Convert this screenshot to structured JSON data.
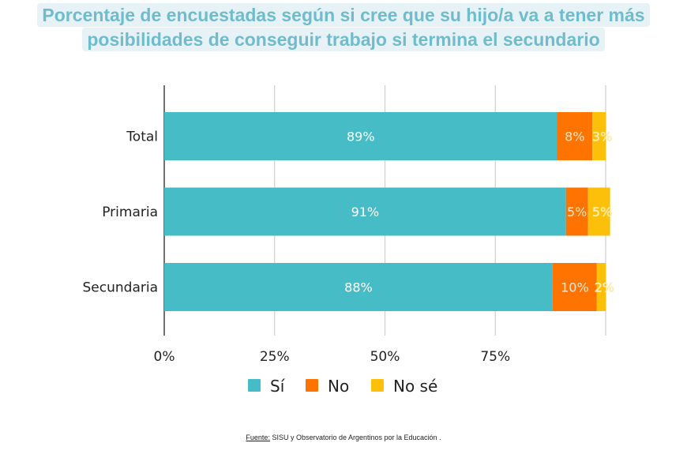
{
  "title": {
    "line1": "Porcentaje de encuestadas según si cree que su hijo/a va a tener más",
    "line2": "posibilidades de conseguir trabajo si termina el secundario"
  },
  "source": {
    "label": "Fuente:",
    "text": " SISU y Observatorio de Argentinos por la Educación ."
  },
  "chart_data": {
    "type": "bar",
    "orientation": "horizontal",
    "stacked": true,
    "title": "Porcentaje de encuestadas según si cree que su hijo/a va a tener más posibilidades de conseguir trabajo si termina el secundario",
    "xlabel": "",
    "ylabel": "",
    "xlim": [
      0,
      100
    ],
    "xticks": [
      0,
      25,
      50,
      75,
      100
    ],
    "xtick_labels": [
      "0%",
      "25%",
      "50%",
      "75%",
      ""
    ],
    "grid": true,
    "legend_position": "bottom",
    "categories": [
      "Total",
      "Primaria",
      "Secundaria"
    ],
    "series": [
      {
        "name": "Sí",
        "color": "#46bcc6",
        "values": [
          89,
          91,
          88
        ],
        "labels": [
          "89%",
          "91%",
          "88%"
        ]
      },
      {
        "name": "No",
        "color": "#ff7300",
        "values": [
          8,
          5,
          10
        ],
        "labels": [
          "8%",
          "5%",
          "10%"
        ]
      },
      {
        "name": "No sé",
        "color": "#fcc00a",
        "values": [
          3,
          5,
          2
        ],
        "labels": [
          "3%",
          "5%",
          "2%"
        ]
      }
    ]
  }
}
